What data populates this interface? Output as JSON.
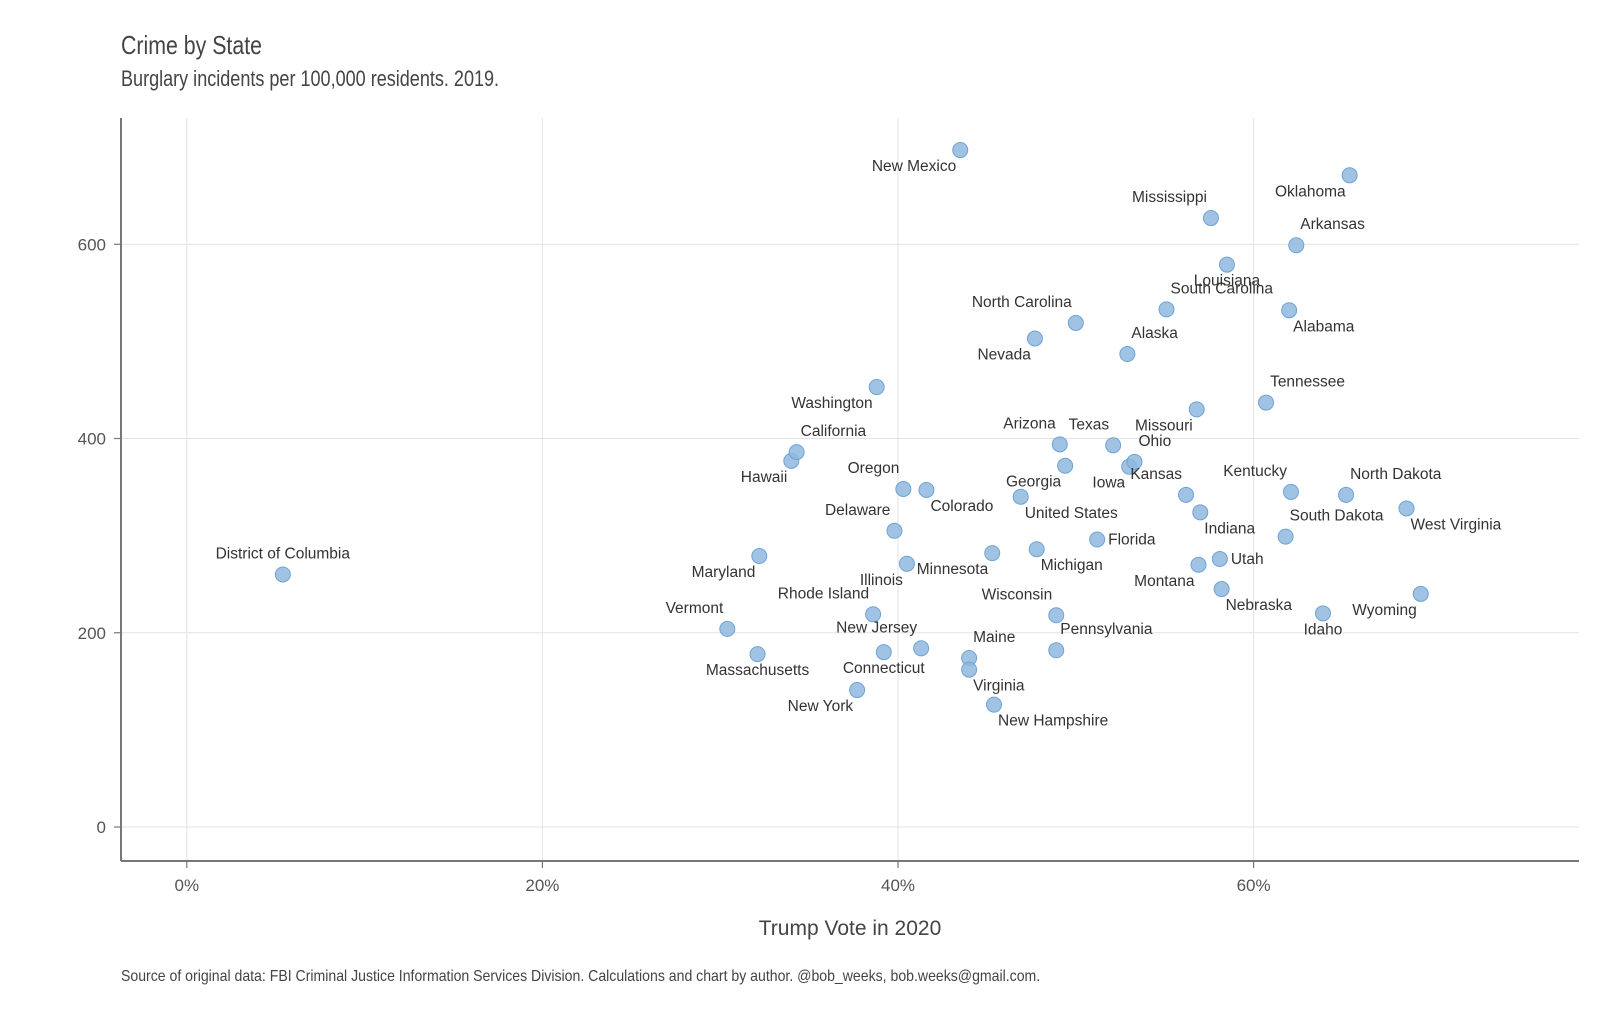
{
  "title": "Crime by State",
  "subtitle": "Burglary incidents per 100,000 residents. 2019.",
  "caption": "Source of original data: FBI Criminal Justice Information Services Division. Calculations and chart by author. @bob_weeks, bob.weeks@gmail.com.",
  "chart_data": {
    "type": "scatter",
    "title": "Crime by State",
    "subtitle": "Burglary incidents per 100,000 residents. 2019.",
    "xlabel": "Trump Vote in 2020",
    "ylabel": "",
    "xlim": [
      -0.037,
      0.783
    ],
    "ylim": [
      -35,
      730
    ],
    "x_ticks": [
      0,
      0.2,
      0.4,
      0.6
    ],
    "x_tick_labels": [
      "0%",
      "20%",
      "40%",
      "60%"
    ],
    "y_ticks": [
      0,
      200,
      400,
      600
    ],
    "y_tick_labels": [
      "0",
      "200",
      "400",
      "600"
    ],
    "grid": true,
    "point_color": "#8fb8df",
    "points": [
      {
        "label": "District of Columbia",
        "x": 0.054,
        "y": 260,
        "label_pos": "above"
      },
      {
        "label": "Vermont",
        "x": 0.304,
        "y": 204,
        "label_pos": "above-left"
      },
      {
        "label": "Massachusetts",
        "x": 0.321,
        "y": 178,
        "label_pos": "below"
      },
      {
        "label": "Maryland",
        "x": 0.322,
        "y": 279,
        "label_pos": "below-left"
      },
      {
        "label": "Hawaii",
        "x": 0.34,
        "y": 377,
        "label_pos": "below-left"
      },
      {
        "label": "California",
        "x": 0.343,
        "y": 386,
        "label_pos": "above-right"
      },
      {
        "label": "New York",
        "x": 0.377,
        "y": 141,
        "label_pos": "below-left"
      },
      {
        "label": "Washington",
        "x": 0.388,
        "y": 453,
        "label_pos": "below-left"
      },
      {
        "label": "Rhode Island",
        "x": 0.386,
        "y": 219,
        "label_pos": "above-left"
      },
      {
        "label": "Connecticut",
        "x": 0.392,
        "y": 180,
        "label_pos": "below"
      },
      {
        "label": "Delaware",
        "x": 0.398,
        "y": 305,
        "label_pos": "above-left"
      },
      {
        "label": "Illinois",
        "x": 0.405,
        "y": 271,
        "label_pos": "below-left"
      },
      {
        "label": "Oregon",
        "x": 0.403,
        "y": 348,
        "label_pos": "above-left"
      },
      {
        "label": "Colorado",
        "x": 0.416,
        "y": 347,
        "label_pos": "below-right"
      },
      {
        "label": "New Jersey",
        "x": 0.413,
        "y": 184,
        "label_pos": "above-left"
      },
      {
        "label": "New Mexico",
        "x": 0.435,
        "y": 697,
        "label_pos": "below-left"
      },
      {
        "label": "Maine",
        "x": 0.44,
        "y": 174,
        "label_pos": "above-right"
      },
      {
        "label": "Virginia",
        "x": 0.44,
        "y": 162,
        "label_pos": "below-right"
      },
      {
        "label": "Minnesota",
        "x": 0.453,
        "y": 282,
        "label_pos": "below-left"
      },
      {
        "label": "New Hampshire",
        "x": 0.454,
        "y": 126,
        "label_pos": "below-right"
      },
      {
        "label": "United States",
        "x": 0.469,
        "y": 340,
        "label_pos": "below-right"
      },
      {
        "label": "Nevada",
        "x": 0.477,
        "y": 503,
        "label_pos": "below-left"
      },
      {
        "label": "Michigan",
        "x": 0.478,
        "y": 286,
        "label_pos": "below-right"
      },
      {
        "label": "Wisconsin",
        "x": 0.489,
        "y": 218,
        "label_pos": "above-left"
      },
      {
        "label": "Pennsylvania",
        "x": 0.489,
        "y": 182,
        "label_pos": "above-right"
      },
      {
        "label": "Arizona",
        "x": 0.491,
        "y": 394,
        "label_pos": "above-left"
      },
      {
        "label": "Georgia",
        "x": 0.494,
        "y": 372,
        "label_pos": "below-left"
      },
      {
        "label": "North Carolina",
        "x": 0.5,
        "y": 519,
        "label_pos": "above-left"
      },
      {
        "label": "Florida",
        "x": 0.512,
        "y": 296,
        "label_pos": "right"
      },
      {
        "label": "Texas",
        "x": 0.521,
        "y": 393,
        "label_pos": "above-left"
      },
      {
        "label": "Iowa",
        "x": 0.53,
        "y": 371,
        "label_pos": "below-left"
      },
      {
        "label": "Alaska",
        "x": 0.529,
        "y": 487,
        "label_pos": "above-right"
      },
      {
        "label": "Ohio",
        "x": 0.533,
        "y": 376,
        "label_pos": "above-right"
      },
      {
        "label": "South Carolina",
        "x": 0.551,
        "y": 533,
        "label_pos": "above-right"
      },
      {
        "label": "Kansas",
        "x": 0.562,
        "y": 342,
        "label_pos": "above-left"
      },
      {
        "label": "Missouri",
        "x": 0.568,
        "y": 430,
        "label_pos": "below-left"
      },
      {
        "label": "Montana",
        "x": 0.569,
        "y": 270,
        "label_pos": "below-left"
      },
      {
        "label": "Indiana",
        "x": 0.57,
        "y": 324,
        "label_pos": "below-right"
      },
      {
        "label": "Mississippi",
        "x": 0.576,
        "y": 627,
        "label_pos": "above-left"
      },
      {
        "label": "Utah",
        "x": 0.581,
        "y": 276,
        "label_pos": "right"
      },
      {
        "label": "Nebraska",
        "x": 0.582,
        "y": 245,
        "label_pos": "below-right"
      },
      {
        "label": "Louisiana",
        "x": 0.585,
        "y": 579,
        "label_pos": "below"
      },
      {
        "label": "Tennessee",
        "x": 0.607,
        "y": 437,
        "label_pos": "above-right"
      },
      {
        "label": "South Dakota",
        "x": 0.618,
        "y": 299,
        "label_pos": "above-right"
      },
      {
        "label": "Alabama",
        "x": 0.62,
        "y": 532,
        "label_pos": "below-right"
      },
      {
        "label": "Kentucky",
        "x": 0.621,
        "y": 345,
        "label_pos": "above-left"
      },
      {
        "label": "Arkansas",
        "x": 0.624,
        "y": 599,
        "label_pos": "above-right"
      },
      {
        "label": "Idaho",
        "x": 0.639,
        "y": 220,
        "label_pos": "below"
      },
      {
        "label": "North Dakota",
        "x": 0.652,
        "y": 342,
        "label_pos": "above-right"
      },
      {
        "label": "Oklahoma",
        "x": 0.654,
        "y": 671,
        "label_pos": "below-left"
      },
      {
        "label": "West Virginia",
        "x": 0.686,
        "y": 328,
        "label_pos": "below-right"
      },
      {
        "label": "Wyoming",
        "x": 0.694,
        "y": 240,
        "label_pos": "below-left"
      }
    ]
  }
}
